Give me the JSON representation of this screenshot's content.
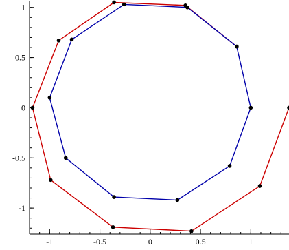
{
  "chart_data": {
    "type": "line",
    "title": "",
    "xlabel": "",
    "ylabel": "",
    "xlim": [
      -1.2,
      1.38
    ],
    "ylim": [
      -1.26,
      1.06
    ],
    "grid": false,
    "legend": "none",
    "x_major_ticks": [
      {
        "value": -1,
        "label": "-1"
      },
      {
        "value": -0.5,
        "label": "-0.5"
      },
      {
        "value": 0,
        "label": "0"
      },
      {
        "value": 0.5,
        "label": "0.5"
      },
      {
        "value": 1,
        "label": "1"
      }
    ],
    "x_minor_step": 0.1,
    "y_major_ticks": [
      {
        "value": -1,
        "label": "-1"
      },
      {
        "value": -0.5,
        "label": "-0.5"
      },
      {
        "value": 0,
        "label": "0"
      },
      {
        "value": 0.5,
        "label": "0.5"
      },
      {
        "value": 1,
        "label": "1"
      }
    ],
    "y_minor_step": 0.1,
    "series": [
      {
        "color": "#cc0000",
        "closed": false,
        "x": [
          1.38,
          1.09,
          0.41,
          -0.37,
          -0.99,
          -1.17,
          -0.91,
          -0.36,
          0.35,
          0.86
        ],
        "y": [
          0.0,
          -0.78,
          -1.23,
          -1.19,
          -0.72,
          0.0,
          0.67,
          1.05,
          1.02,
          0.61
        ]
      },
      {
        "color": "#0000aa",
        "closed": true,
        "x": [
          1.0,
          0.79,
          0.27,
          -0.36,
          -0.84,
          -1.0,
          -0.78,
          -0.26,
          0.37,
          0.86
        ],
        "y": [
          0.0,
          -0.58,
          -0.92,
          -0.89,
          -0.5,
          0.1,
          0.68,
          1.03,
          1.0,
          0.61
        ]
      }
    ],
    "marker_color": "#000000"
  }
}
